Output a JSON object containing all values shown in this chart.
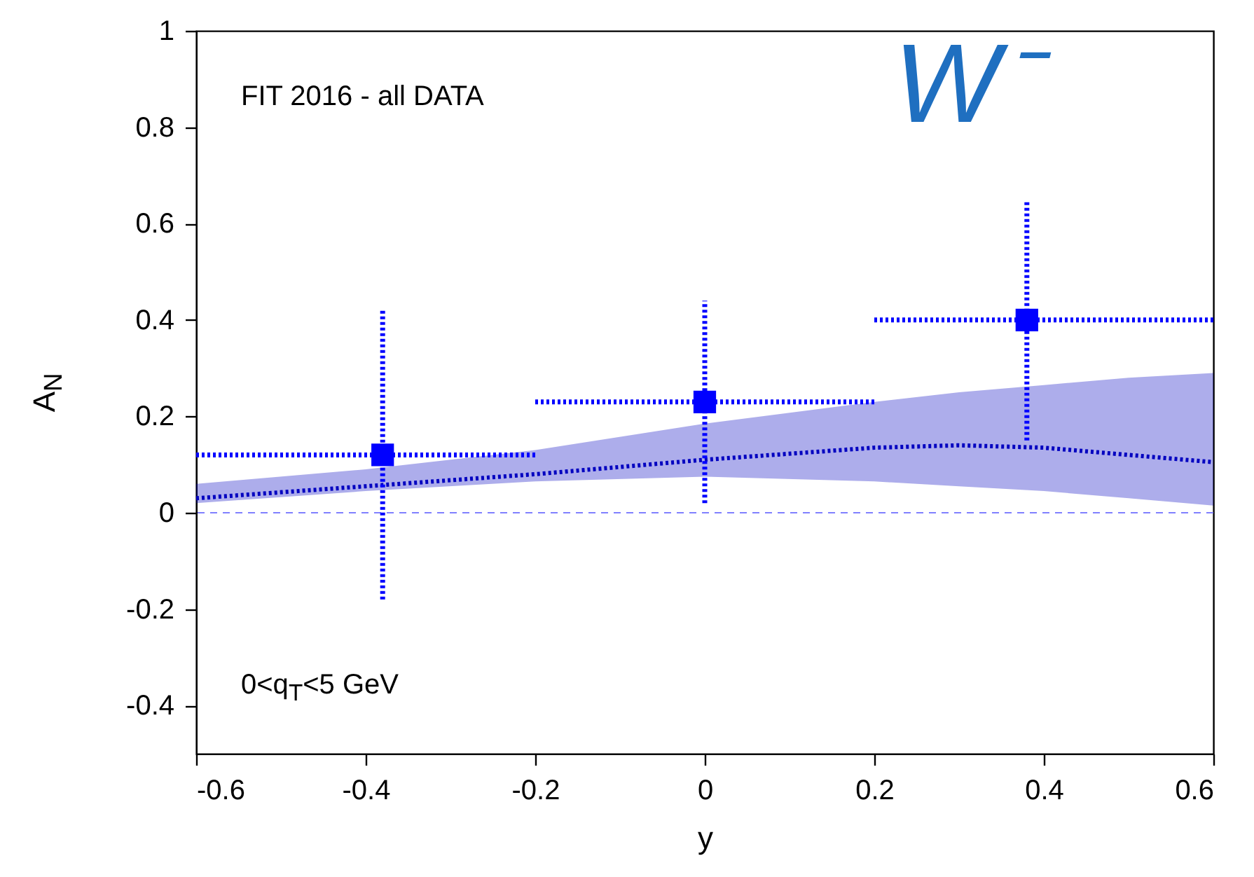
{
  "chart_data": {
    "type": "scatter",
    "xlabel": "y",
    "ylabel": "A$_{N}$",
    "annotations": [
      "FIT 2016 - all DATA",
      "0<q$_{T}$<5 GeV",
      "W⁻"
    ],
    "xlim": [
      -0.6,
      0.6
    ],
    "xticks": [
      -0.6,
      -0.4,
      -0.2,
      0,
      0.2,
      0.4,
      0.6
    ],
    "ylim": [
      -0.5,
      1
    ],
    "yticks": [
      -0.4,
      -0.2,
      0,
      0.2,
      0.4,
      0.6,
      0.8,
      1
    ],
    "grid": false,
    "ref_lines": [
      {
        "axis": "y",
        "value": 0,
        "color": "#8080ff",
        "line_style": "dashed"
      }
    ],
    "series": [
      {
        "type": "line",
        "color": "#0000c0",
        "line_style": "dotted",
        "marker": "none",
        "x": [
          -0.6,
          -0.4,
          -0.2,
          0,
          0.2,
          0.3,
          0.4,
          0.5,
          0.6
        ],
        "values": [
          0.03,
          0.055,
          0.08,
          0.11,
          0.135,
          0.14,
          0.135,
          0.12,
          0.105
        ],
        "lower": [
          0.02,
          0.045,
          0.065,
          0.075,
          0.065,
          0.055,
          0.045,
          0.03,
          0.015
        ],
        "upper": [
          0.06,
          0.09,
          0.13,
          0.185,
          0.23,
          0.25,
          0.265,
          0.28,
          0.29
        ]
      },
      {
        "color": "#0000ff",
        "marker": "square",
        "line_style": "dotted",
        "x": [
          -0.38,
          0,
          0.38
        ],
        "values": [
          0.12,
          0.23,
          0.4
        ],
        "errors": [
          [
            -0.18,
            0.42
          ],
          [
            0.02,
            0.44
          ],
          [
            0.15,
            0.65
          ]
        ],
        "xerrors": [
          [
            -0.6,
            -0.2
          ],
          [
            -0.2,
            0.2
          ],
          [
            0.2,
            0.6
          ]
        ]
      }
    ]
  }
}
